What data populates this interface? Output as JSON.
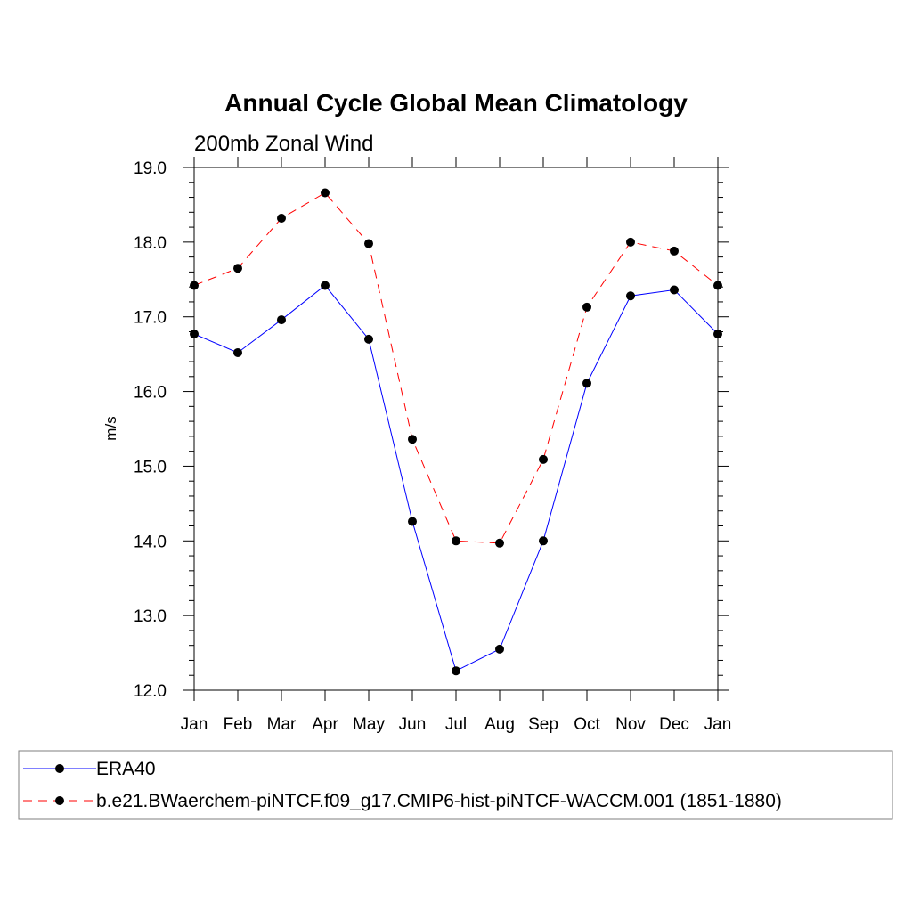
{
  "chart_data": {
    "type": "line",
    "title": "Annual Cycle Global Mean Climatology",
    "subtitle": "200mb Zonal Wind",
    "xlabel": "",
    "ylabel": "m/s",
    "categories": [
      "Jan",
      "Feb",
      "Mar",
      "Apr",
      "May",
      "Jun",
      "Jul",
      "Aug",
      "Sep",
      "Oct",
      "Nov",
      "Dec",
      "Jan"
    ],
    "ylim": [
      12.0,
      19.0
    ],
    "yticks": [
      "12.0",
      "13.0",
      "14.0",
      "15.0",
      "16.0",
      "17.0",
      "18.0",
      "19.0"
    ],
    "grid": false,
    "legend_position": "bottom",
    "series": [
      {
        "name": "ERA40",
        "color": "#0000ff",
        "dash": "solid",
        "values": [
          16.77,
          16.52,
          16.96,
          17.42,
          16.7,
          14.26,
          12.26,
          12.55,
          14.0,
          16.11,
          17.28,
          17.36,
          16.77
        ]
      },
      {
        "name": "b.e21.BWaerchem-piNTCF.f09_g17.CMIP6-hist-piNTCF-WACCM.001 (1851-1880)",
        "color": "#ff0000",
        "dash": "dashed",
        "values": [
          17.42,
          17.65,
          18.32,
          18.66,
          17.98,
          15.36,
          14.0,
          13.97,
          15.09,
          17.13,
          18.0,
          17.88,
          17.42
        ]
      }
    ]
  }
}
